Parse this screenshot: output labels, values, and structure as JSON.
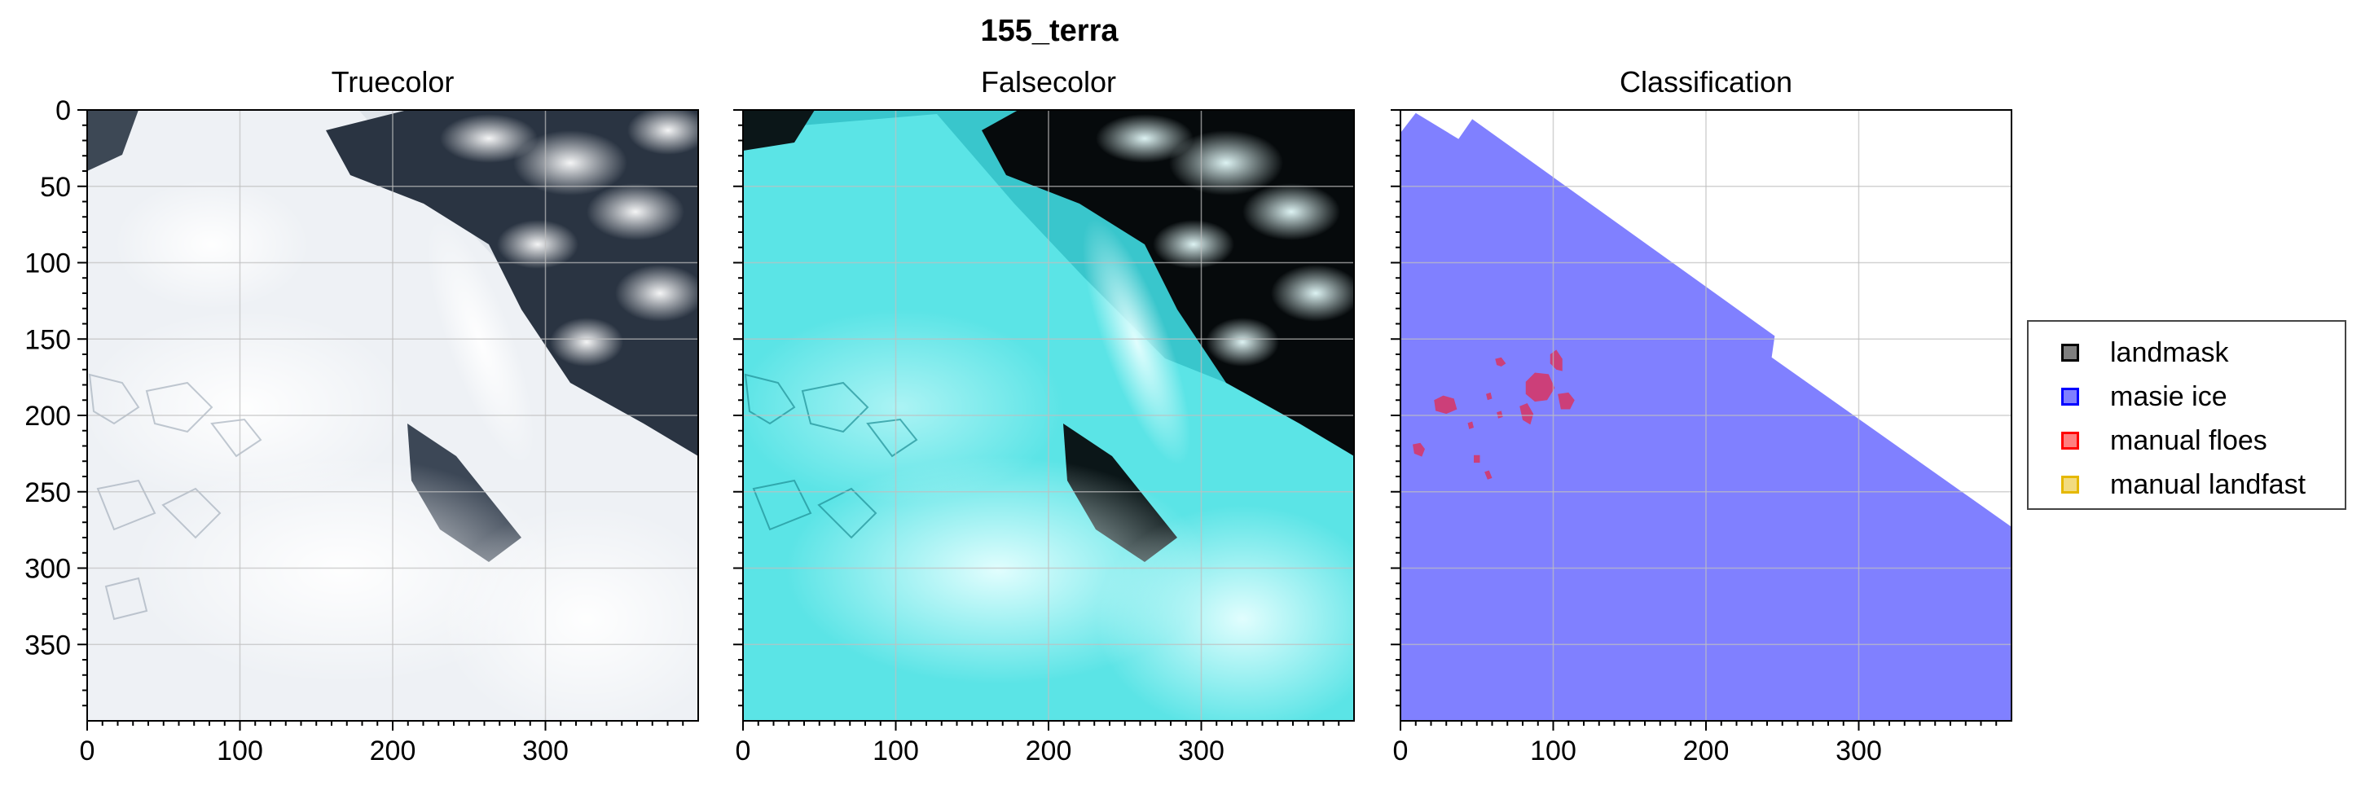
{
  "figure": {
    "suptitle": "155_terra"
  },
  "chart_data": [
    {
      "type": "image",
      "title": "Truecolor",
      "xlim": [
        0,
        400
      ],
      "ylim": [
        400,
        0
      ],
      "xticks": [
        0,
        100,
        200,
        300
      ],
      "yticks": [
        0,
        50,
        100,
        150,
        200,
        250,
        300,
        350
      ],
      "grid": true,
      "content": "truecolor satellite image of sea ice and clouds"
    },
    {
      "type": "image",
      "title": "Falsecolor",
      "xlim": [
        0,
        400
      ],
      "ylim": [
        400,
        0
      ],
      "xticks": [
        0,
        100,
        200,
        300
      ],
      "grid": true,
      "content": "falsecolor satellite image, ice in cyan, open water black"
    },
    {
      "type": "image",
      "title": "Classification",
      "xlim": [
        0,
        400
      ],
      "ylim": [
        400,
        0
      ],
      "xticks": [
        0,
        100,
        200,
        300
      ],
      "grid": true,
      "masie_ice_boundary": [
        [
          0,
          15
        ],
        [
          10,
          2
        ],
        [
          38,
          19
        ],
        [
          47,
          6
        ],
        [
          245,
          148
        ],
        [
          243,
          162
        ],
        [
          400,
          273
        ]
      ],
      "manual_floes": [
        [
          [
            82,
            178
          ],
          [
            88,
            172
          ],
          [
            97,
            173
          ],
          [
            101,
            182
          ],
          [
            96,
            190
          ],
          [
            88,
            191
          ],
          [
            82,
            186
          ]
        ],
        [
          [
            98,
            160
          ],
          [
            102,
            157
          ],
          [
            106,
            163
          ],
          [
            106,
            171
          ],
          [
            102,
            170
          ],
          [
            98,
            166
          ]
        ],
        [
          [
            22,
            190
          ],
          [
            28,
            187
          ],
          [
            35,
            189
          ],
          [
            37,
            196
          ],
          [
            30,
            199
          ],
          [
            23,
            197
          ]
        ],
        [
          [
            103,
            186
          ],
          [
            110,
            185
          ],
          [
            114,
            190
          ],
          [
            111,
            196
          ],
          [
            105,
            196
          ]
        ],
        [
          [
            78,
            194
          ],
          [
            83,
            192
          ],
          [
            87,
            199
          ],
          [
            85,
            206
          ],
          [
            80,
            203
          ]
        ],
        [
          [
            8,
            219
          ],
          [
            13,
            218
          ],
          [
            16,
            222
          ],
          [
            14,
            227
          ],
          [
            9,
            225
          ]
        ],
        [
          [
            62,
            163
          ],
          [
            66,
            162
          ],
          [
            69,
            166
          ],
          [
            66,
            168
          ],
          [
            63,
            167
          ]
        ],
        [
          [
            48,
            226
          ],
          [
            52,
            226
          ],
          [
            52,
            231
          ],
          [
            48,
            231
          ]
        ],
        [
          [
            55,
            237
          ],
          [
            58,
            236
          ],
          [
            60,
            241
          ],
          [
            57,
            242
          ]
        ],
        [
          [
            44,
            205
          ],
          [
            47,
            204
          ],
          [
            48,
            208
          ],
          [
            45,
            209
          ]
        ],
        [
          [
            63,
            198
          ],
          [
            66,
            197
          ],
          [
            67,
            201
          ],
          [
            64,
            202
          ]
        ],
        [
          [
            56,
            186
          ],
          [
            59,
            185
          ],
          [
            60,
            189
          ],
          [
            57,
            190
          ]
        ]
      ]
    }
  ],
  "legend": {
    "placement": "right",
    "items": [
      {
        "label": "landmask",
        "color": "#000000"
      },
      {
        "label": "masie ice",
        "color": "#0000ff"
      },
      {
        "label": "manual floes",
        "color": "#ff0000"
      },
      {
        "label": "manual landfast",
        "color": "#e5b800"
      }
    ]
  },
  "colors": {
    "masie_fill": "#8080ff",
    "floe_fill": "#cc3f79",
    "grid": "#c0c0c0",
    "spine": "#000000"
  }
}
